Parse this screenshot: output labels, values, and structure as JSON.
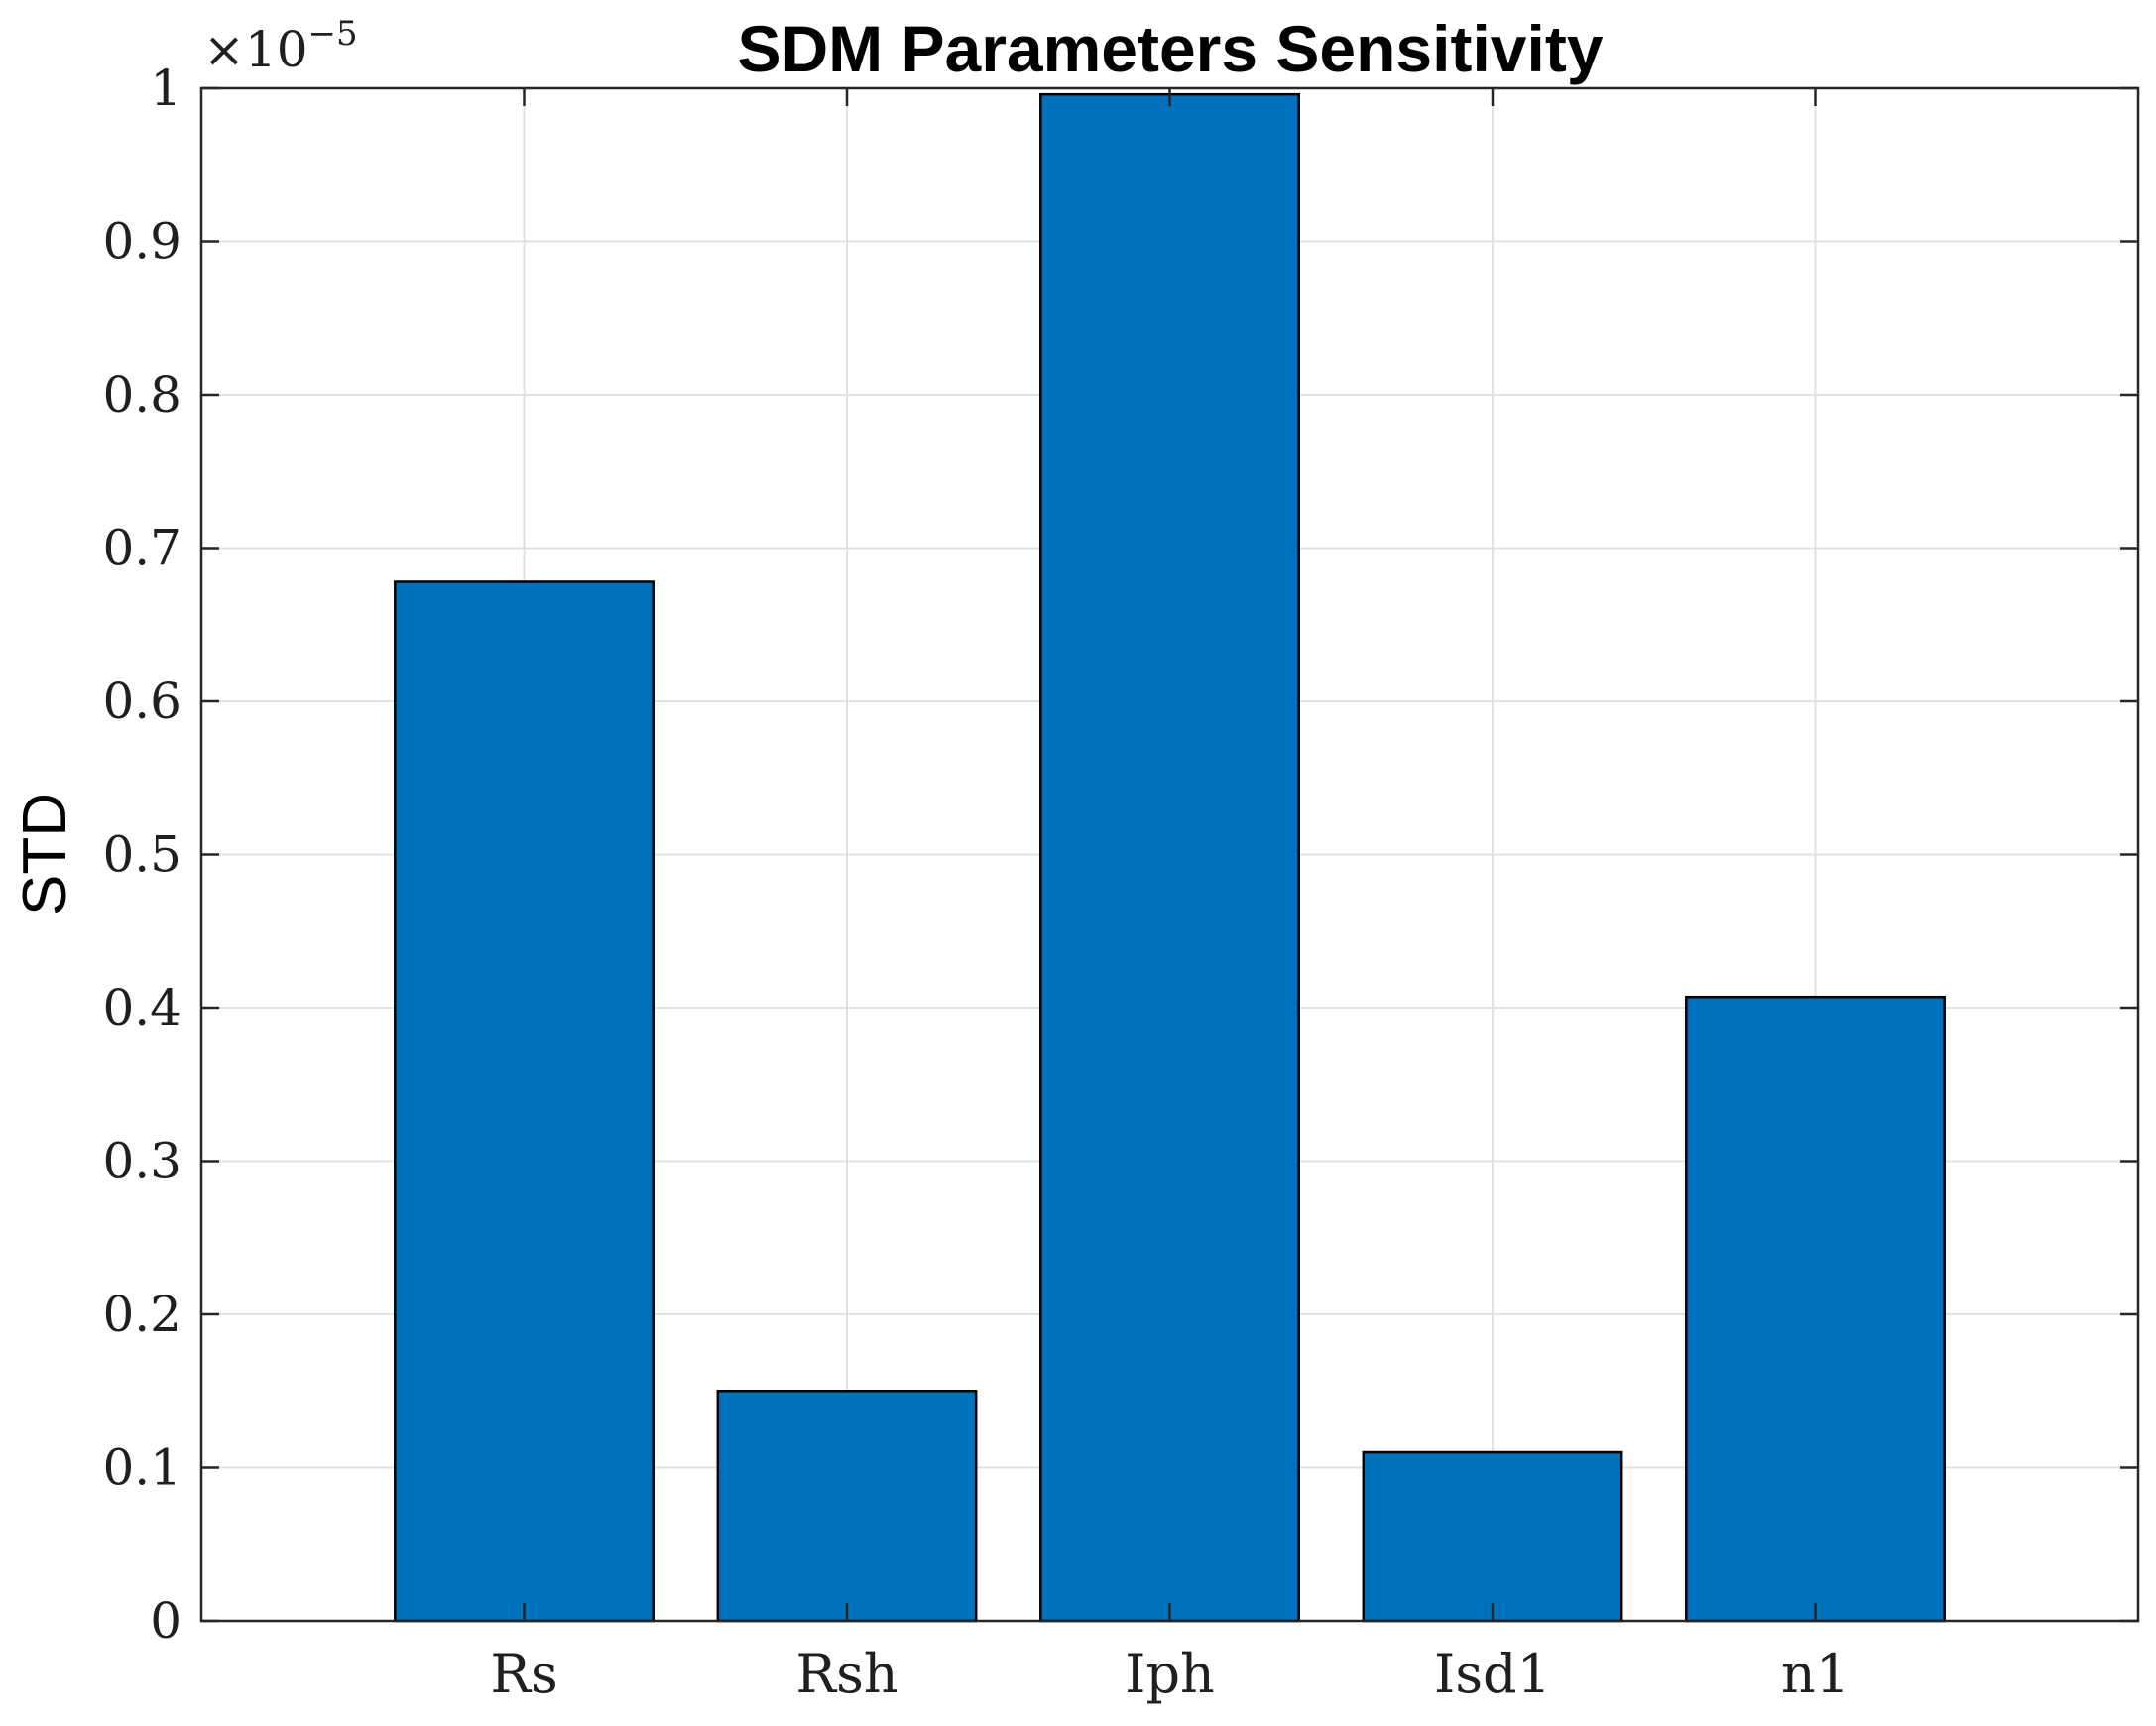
{
  "chart_data": {
    "type": "bar",
    "title": "SDM Parameters Sensitivity",
    "xlabel": "",
    "ylabel": "STD",
    "categories": [
      "Rs",
      "Rsh",
      "Iph",
      "Isd1",
      "n1"
    ],
    "values": [
      0.678,
      0.15,
      0.996,
      0.11,
      0.407
    ],
    "ylim": [
      0,
      1
    ],
    "yticks": [
      "0",
      "0.1",
      "0.2",
      "0.3",
      "0.4",
      "0.5",
      "0.6",
      "0.7",
      "0.8",
      "0.9",
      "1"
    ],
    "y_multiplier": {
      "base": "×10",
      "exponent": "−5"
    },
    "grid": true,
    "legend": "none",
    "colors": {
      "bar_fill": "#0072BD",
      "bar_edge": "#000000",
      "grid": "#e1e1e1",
      "axis": "#262626"
    }
  }
}
